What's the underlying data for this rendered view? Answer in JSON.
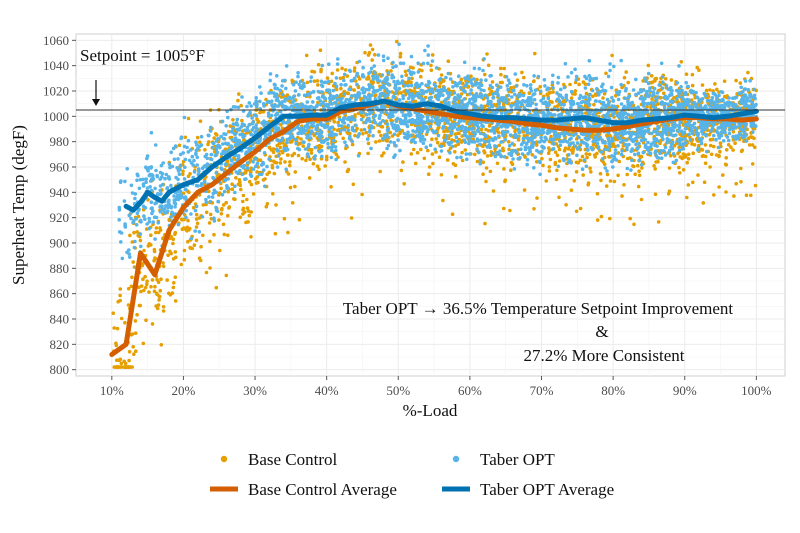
{
  "chart_data": {
    "type": "scatter",
    "xlabel": "%-Load",
    "ylabel": "Superheat Temp (degF)",
    "xlim": [
      0.05,
      1.04
    ],
    "ylim": [
      795,
      1065
    ],
    "x_ticks": [
      0.1,
      0.2,
      0.3,
      0.4,
      0.5,
      0.6,
      0.7,
      0.8,
      0.9,
      1.0
    ],
    "x_tick_labels": [
      "10%",
      "20%",
      "30%",
      "40%",
      "50%",
      "60%",
      "70%",
      "80%",
      "90%",
      "100%"
    ],
    "y_ticks": [
      800,
      820,
      840,
      860,
      880,
      900,
      920,
      940,
      960,
      980,
      1000,
      1020,
      1040,
      1060
    ],
    "y_tick_labels": [
      "800",
      "820",
      "840",
      "860",
      "880",
      "900",
      "920",
      "940",
      "960",
      "980",
      "1000",
      "1020",
      "1040",
      "1060"
    ],
    "grid": true,
    "legend_position": "bottom",
    "setpoint": {
      "value": 1005,
      "label": "Setpoint = 1005°F"
    },
    "annotation": {
      "line1": "Taber OPT → 36.5% Temperature Setpoint Improvement",
      "line2": "&",
      "line3": "27.2% More Consistent"
    },
    "series": [
      {
        "name": "Base Control",
        "kind": "points",
        "color": "#E69F00",
        "x_range": [
          0.1,
          1.0
        ],
        "spread_note_removed": true
      },
      {
        "name": "Taber OPT",
        "kind": "points",
        "color": "#56B4E9",
        "x_range": [
          0.11,
          1.0
        ]
      },
      {
        "name": "Base Control Average",
        "kind": "line",
        "color": "#D55E00",
        "x": [
          0.1,
          0.12,
          0.14,
          0.16,
          0.18,
          0.2,
          0.22,
          0.24,
          0.26,
          0.28,
          0.3,
          0.32,
          0.34,
          0.36,
          0.38,
          0.4,
          0.42,
          0.44,
          0.46,
          0.48,
          0.5,
          0.52,
          0.54,
          0.56,
          0.58,
          0.6,
          0.62,
          0.64,
          0.66,
          0.68,
          0.7,
          0.72,
          0.74,
          0.76,
          0.78,
          0.8,
          0.82,
          0.84,
          0.86,
          0.88,
          0.9,
          0.92,
          0.94,
          0.96,
          0.98,
          1.0
        ],
        "y": [
          812,
          820,
          892,
          875,
          910,
          928,
          940,
          946,
          955,
          964,
          972,
          982,
          988,
          996,
          998,
          998,
          1004,
          1006,
          1009,
          1012,
          1008,
          1006,
          1004,
          1002,
          1000,
          999,
          998,
          997,
          996,
          994,
          993,
          991,
          990,
          989,
          989,
          990,
          992,
          994,
          996,
          998,
          999,
          999,
          998,
          998,
          997,
          998
        ]
      },
      {
        "name": "Taber OPT Average",
        "kind": "line",
        "color": "#0072B2",
        "x": [
          0.12,
          0.13,
          0.14,
          0.15,
          0.16,
          0.17,
          0.18,
          0.2,
          0.22,
          0.24,
          0.26,
          0.28,
          0.3,
          0.32,
          0.34,
          0.36,
          0.38,
          0.4,
          0.42,
          0.44,
          0.46,
          0.48,
          0.5,
          0.52,
          0.54,
          0.56,
          0.58,
          0.6,
          0.62,
          0.64,
          0.66,
          0.68,
          0.7,
          0.72,
          0.74,
          0.76,
          0.78,
          0.8,
          0.82,
          0.84,
          0.86,
          0.88,
          0.9,
          0.92,
          0.94,
          0.96,
          0.98,
          1.0
        ],
        "y": [
          929,
          926,
          932,
          940,
          936,
          933,
          940,
          946,
          950,
          960,
          968,
          975,
          983,
          992,
          1000,
          1000,
          1001,
          1001,
          1007,
          1009,
          1010,
          1012,
          1009,
          1008,
          1010,
          1008,
          1004,
          1002,
          1000,
          999,
          999,
          998,
          997,
          997,
          998,
          999,
          997,
          995,
          995,
          997,
          998,
          999,
          1001,
          1000,
          999,
          1000,
          1002,
          1004
        ]
      }
    ]
  },
  "legend": {
    "items": [
      {
        "label": "Base Control",
        "kind": "point",
        "color": "#E69F00"
      },
      {
        "label": "Taber OPT",
        "kind": "point",
        "color": "#56B4E9"
      },
      {
        "label": "Base Control Average",
        "kind": "line",
        "color": "#D55E00"
      },
      {
        "label": "Taber OPT Average",
        "kind": "line",
        "color": "#0072B2"
      }
    ]
  }
}
